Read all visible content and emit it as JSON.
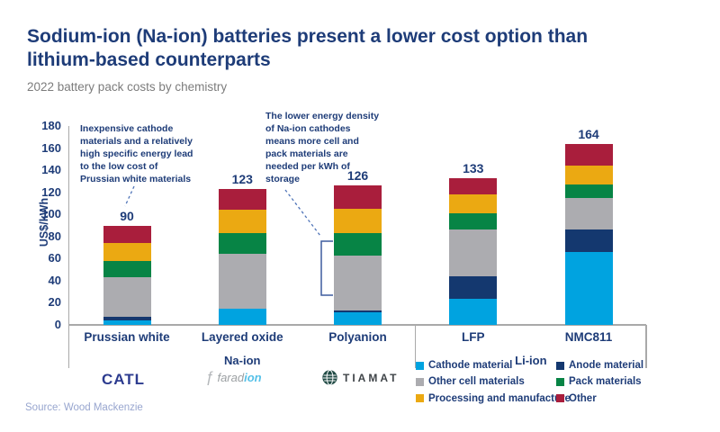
{
  "header": {
    "title": "Sodium-ion (Na-ion) batteries present a lower cost option than\nlithium-based counterparts",
    "subtitle": "2022 battery pack costs by chemistry"
  },
  "annotations": {
    "prussian_white": "Inexpensive cathode\nmaterials and a relatively\nhigh specific energy lead\nto the low cost of\nPrussian white materials",
    "energy_density": "The lower energy density\nof Na-ion cathodes\nmeans more cell and\npack materials are\nneeded per kWh of\nstorage"
  },
  "chart_data": {
    "type": "bar",
    "stacked": true,
    "title": "2022 battery pack costs by chemistry",
    "ylabel": "US$/kWh",
    "ylim": [
      0,
      180
    ],
    "ytick_step": 20,
    "grid": false,
    "legend_position": "bottom-right",
    "categories": [
      "Prussian white",
      "Layered oxide",
      "Polyanion",
      "LFP",
      "NMC811"
    ],
    "groups": [
      {
        "label": "Na-ion",
        "members": [
          0,
          1,
          2
        ]
      },
      {
        "label": "Li-ion",
        "members": [
          3,
          4
        ]
      }
    ],
    "totals": [
      90,
      123,
      126,
      133,
      164
    ],
    "series": [
      {
        "name": "Cathode material",
        "color": "#00A3E0",
        "values": [
          4,
          15,
          11,
          24,
          66
        ]
      },
      {
        "name": "Anode material",
        "color": "#14386F",
        "values": [
          3,
          0,
          2,
          20,
          20
        ]
      },
      {
        "name": "Other cell materials",
        "color": "#ACACB0",
        "values": [
          36,
          49,
          50,
          42,
          29
        ]
      },
      {
        "name": "Pack materials",
        "color": "#078445",
        "values": [
          15,
          19,
          20,
          15,
          12
        ]
      },
      {
        "name": "Processing and manufacture",
        "color": "#EBA912",
        "values": [
          16,
          21,
          22,
          17,
          17
        ]
      },
      {
        "name": "Other",
        "color": "#A91E3C",
        "values": [
          16,
          19,
          21,
          15,
          20
        ]
      }
    ]
  },
  "logos": {
    "catl": "CATL",
    "faradion_glyph": "ƒ",
    "faradion_part1": "farad",
    "faradion_part2": "ion",
    "tiamat": "TIAMAT"
  },
  "source": "Source: Wood Mackenzie",
  "colors": {
    "title_text": "#1E3C78",
    "subtitle_text": "#7C7C7C",
    "axis_line": "#A9A9A9",
    "callout_line": "#4F74B8",
    "bracket": "#3D5C9E",
    "source_text": "#98A6CF",
    "catl_logo": "#2C3B8F",
    "faradion_accent": "#56C1E8",
    "tiamat_icon": "#1F4A44"
  }
}
